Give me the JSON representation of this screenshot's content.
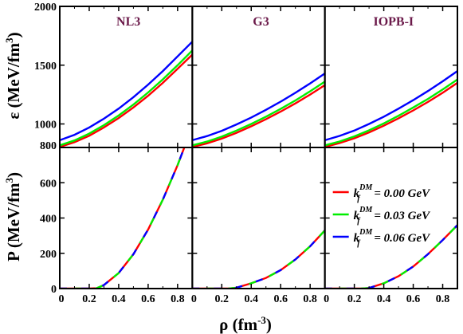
{
  "chart_data": {
    "type": "line",
    "panels": [
      {
        "name": "NL3",
        "label_color": "#6b1a4a"
      },
      {
        "name": "G3",
        "label_color": "#6b1a4a"
      },
      {
        "name": "IOPB-I",
        "label_color": "#6b1a4a"
      }
    ],
    "series": [
      {
        "name": "k_f^DM = 0.00 GeV",
        "color": "#ff0000"
      },
      {
        "name": "k_f^DM = 0.03 GeV",
        "color": "#00ee00"
      },
      {
        "name": "k_f^DM = 0.06 GeV",
        "color": "#0000ff"
      }
    ],
    "legend": {
      "entries": [
        {
          "prefix": "k",
          "sub": "f",
          "sup": "DM",
          "value": " = 0.00 GeV"
        },
        {
          "prefix": "k",
          "sub": "f",
          "sup": "DM",
          "value": " = 0.03 GeV"
        },
        {
          "prefix": "k",
          "sub": "f",
          "sup": "DM",
          "value": " = 0.06 GeV"
        }
      ],
      "panel": "bottom-right",
      "placement": "top"
    },
    "xlabel": {
      "main": "ρ (fm",
      "sup": "-3",
      "end": ")"
    },
    "xlim": [
      0,
      0.9
    ],
    "xticks": [
      "0",
      "0.2",
      "0.4",
      "0.6",
      "0.8"
    ],
    "xtick_values": [
      0,
      0.2,
      0.4,
      0.6,
      0.8
    ],
    "top": {
      "ylabel": {
        "main": "ε (MeV/fm",
        "sup": "3",
        "end": ")"
      },
      "ylim": [
        800,
        2000
      ],
      "yticks": [
        "800",
        "1000",
        "1500",
        "2000"
      ],
      "ytick_values": [
        800,
        1000,
        1500,
        2000
      ],
      "x": [
        0,
        0.1,
        0.2,
        0.3,
        0.4,
        0.5,
        0.6,
        0.7,
        0.8,
        0.9
      ],
      "data": {
        "NL3": [
          [
            805,
            845,
            900,
            970,
            1050,
            1140,
            1240,
            1350,
            1470,
            1590
          ],
          [
            818,
            860,
            918,
            990,
            1072,
            1165,
            1268,
            1380,
            1500,
            1625
          ],
          [
            862,
            908,
            970,
            1045,
            1130,
            1228,
            1335,
            1450,
            1575,
            1700
          ]
        ],
        "G3": [
          [
            805,
            835,
            875,
            925,
            980,
            1040,
            1105,
            1175,
            1250,
            1330
          ],
          [
            818,
            850,
            892,
            944,
            1000,
            1062,
            1128,
            1200,
            1278,
            1360
          ],
          [
            862,
            897,
            942,
            996,
            1055,
            1120,
            1190,
            1265,
            1345,
            1430
          ]
        ],
        "IOPB-I": [
          [
            805,
            837,
            878,
            928,
            985,
            1048,
            1115,
            1187,
            1265,
            1350
          ],
          [
            818,
            851,
            894,
            946,
            1005,
            1070,
            1140,
            1213,
            1293,
            1378
          ],
          [
            862,
            898,
            944,
            1000,
            1062,
            1130,
            1203,
            1280,
            1363,
            1450
          ]
        ]
      }
    },
    "bottom": {
      "ylabel": {
        "main": "P (MeV/fm",
        "sup": "3",
        "end": ")"
      },
      "ylim": [
        0,
        800
      ],
      "yticks": [
        "0",
        "200",
        "400",
        "600"
      ],
      "ytick_values": [
        0,
        200,
        400,
        600
      ],
      "x": [
        0,
        0.1,
        0.2,
        0.25,
        0.3,
        0.4,
        0.5,
        0.6,
        0.7,
        0.8,
        0.9
      ],
      "data": {
        "NL3": [
          0,
          0,
          0,
          2,
          20,
          88,
          195,
          335,
          505,
          700,
          920
        ],
        "G3": [
          0,
          0,
          0,
          0,
          5,
          30,
          60,
          105,
          165,
          240,
          330
        ],
        "IOPB-I": [
          0,
          0,
          0,
          0,
          3,
          30,
          70,
          125,
          195,
          275,
          360
        ]
      }
    }
  }
}
